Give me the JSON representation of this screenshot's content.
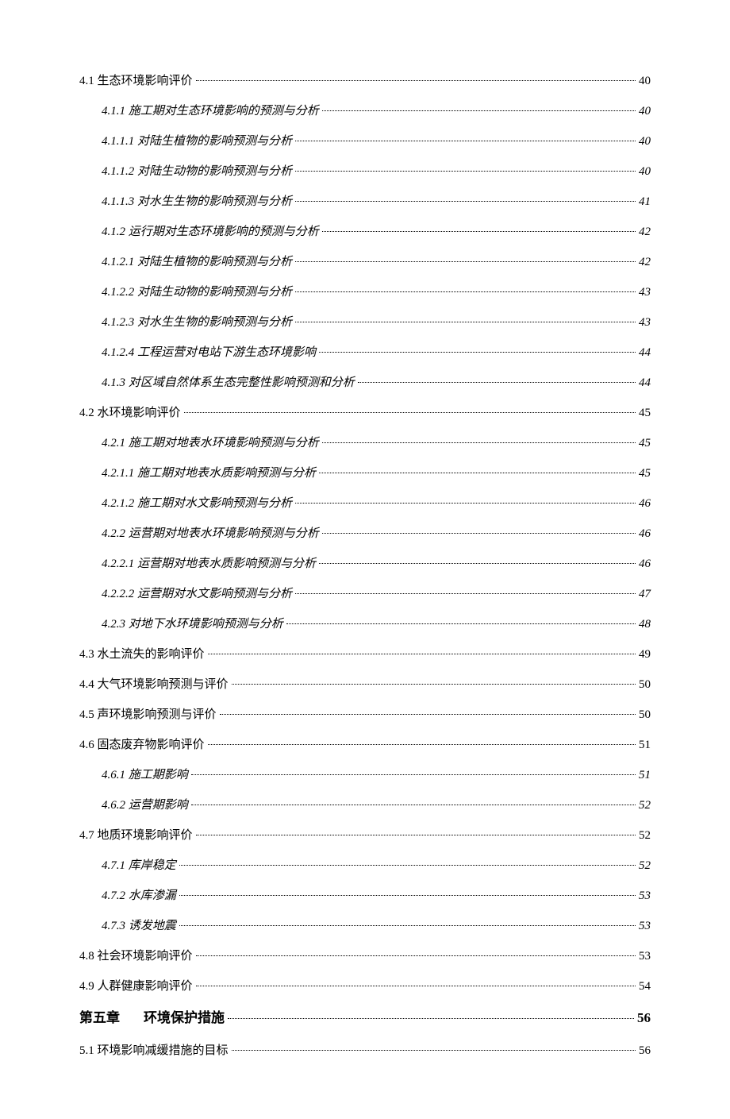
{
  "typography": {
    "base_fontsize": 15,
    "chapter_fontsize": 17,
    "font_family": "SimSun",
    "text_color": "#000000",
    "background_color": "#ffffff",
    "dot_color": "#000000",
    "line_spacing": 14,
    "level2_indent": 28
  },
  "entries": [
    {
      "level": 1,
      "num": "4.1",
      "title": "生态环境影响评价",
      "page": "40",
      "italic": false
    },
    {
      "level": 2,
      "num": "4.1.1",
      "title": "施工期对生态环境影响的预测与分析",
      "page": "40",
      "italic": true
    },
    {
      "level": 2,
      "num": "4.1.1.1",
      "title": "对陆生植物的影响预测与分析",
      "page": "40",
      "italic": true
    },
    {
      "level": 2,
      "num": "4.1.1.2",
      "title": "对陆生动物的影响预测与分析",
      "page": "40",
      "italic": true
    },
    {
      "level": 2,
      "num": "4.1.1.3",
      "title": "对水生生物的影响预测与分析",
      "page": "41",
      "italic": true
    },
    {
      "level": 2,
      "num": "4.1.2",
      "title": "运行期对生态环境影响的预测与分析",
      "page": "42",
      "italic": true
    },
    {
      "level": 2,
      "num": "4.1.2.1",
      "title": "对陆生植物的影响预测与分析",
      "page": "42",
      "italic": true
    },
    {
      "level": 2,
      "num": "4.1.2.2",
      "title": "对陆生动物的影响预测与分析",
      "page": "43",
      "italic": true
    },
    {
      "level": 2,
      "num": "4.1.2.3",
      "title": "对水生生物的影响预测与分析",
      "page": "43",
      "italic": true
    },
    {
      "level": 2,
      "num": "4.1.2.4",
      "title": "工程运营对电站下游生态环境影响",
      "page": "44",
      "italic": true
    },
    {
      "level": 2,
      "num": "4.1.3",
      "title": "对区域自然体系生态完整性影响预测和分析",
      "page": "44",
      "italic": true
    },
    {
      "level": 1,
      "num": "4.2",
      "title": "水环境影响评价",
      "page": "45",
      "italic": false
    },
    {
      "level": 2,
      "num": "4.2.1",
      "title": "施工期对地表水环境影响预测与分析",
      "page": "45",
      "italic": true
    },
    {
      "level": 2,
      "num": "4.2.1.1",
      "title": "施工期对地表水质影响预测与分析",
      "page": "45",
      "italic": true
    },
    {
      "level": 2,
      "num": "4.2.1.2",
      "title": "施工期对水文影响预测与分析",
      "page": "46",
      "italic": true
    },
    {
      "level": 2,
      "num": "4.2.2",
      "title": "运营期对地表水环境影响预测与分析",
      "page": "46",
      "italic": true
    },
    {
      "level": 2,
      "num": "4.2.2.1",
      "title": "运营期对地表水质影响预测与分析",
      "page": "46",
      "italic": true
    },
    {
      "level": 2,
      "num": "4.2.2.2",
      "title": "运营期对水文影响预测与分析",
      "page": "47",
      "italic": true
    },
    {
      "level": 2,
      "num": "4.2.3",
      "title": "对地下水环境影响预测与分析",
      "page": "48",
      "italic": true
    },
    {
      "level": 1,
      "num": "4.3",
      "title": "水土流失的影响评价",
      "page": "49",
      "italic": false
    },
    {
      "level": 1,
      "num": "4.4",
      "title": "大气环境影响预测与评价",
      "page": "50",
      "italic": false
    },
    {
      "level": 1,
      "num": "4.5",
      "title": "声环境影响预测与评价",
      "page": "50",
      "italic": false
    },
    {
      "level": 1,
      "num": "4.6",
      "title": "固态废弃物影响评价",
      "page": "51",
      "italic": false
    },
    {
      "level": 2,
      "num": "4.6.1",
      "title": "施工期影响",
      "page": "51",
      "italic": true
    },
    {
      "level": 2,
      "num": "4.6.2",
      "title": "运营期影响",
      "page": "52",
      "italic": true
    },
    {
      "level": 1,
      "num": "4.7",
      "title": "地质环境影响评价",
      "page": "52",
      "italic": false
    },
    {
      "level": 2,
      "num": "4.7.1",
      "title": "库岸稳定",
      "page": "52",
      "italic": true
    },
    {
      "level": 2,
      "num": "4.7.2",
      "title": "水库渗漏",
      "page": "53",
      "italic": true
    },
    {
      "level": 2,
      "num": "4.7.3",
      "title": "诱发地震",
      "page": "53",
      "italic": true
    },
    {
      "level": 1,
      "num": "4.8",
      "title": "社会环境影响评价",
      "page": "53",
      "italic": false
    },
    {
      "level": 1,
      "num": "4.9",
      "title": "人群健康影响评价",
      "page": "54",
      "italic": false
    },
    {
      "level": 0,
      "num": "第五章",
      "title": "环境保护措施",
      "page": "56",
      "italic": false,
      "chapter": true
    },
    {
      "level": 1,
      "num": "5.1",
      "title": "环境影响减缓措施的目标",
      "page": "56",
      "italic": false
    }
  ]
}
